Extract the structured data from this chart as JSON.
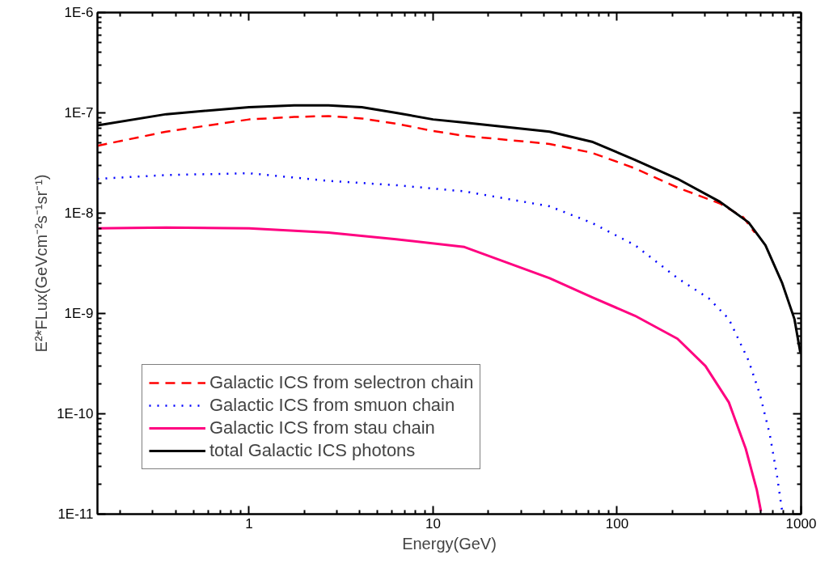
{
  "chart_data": {
    "type": "line",
    "xlabel": "Energy(GeV)",
    "ylabel": "E²*FLux(GeVcm⁻²s⁻¹sr⁻¹)",
    "log": "xy",
    "grid": false,
    "legend": "bottom left",
    "xlim": [
      0.15,
      1000
    ],
    "xticks": [
      1,
      10,
      100,
      1000
    ],
    "ylim": [
      1e-11,
      1e-06
    ],
    "yticks": [
      {
        "value": 1e-11,
        "label": "1E-11"
      },
      {
        "value": 1e-10,
        "label": "1E-10"
      },
      {
        "value": 1e-09,
        "label": "1E-9"
      },
      {
        "value": 1e-08,
        "label": "1E-8"
      },
      {
        "value": 1e-07,
        "label": "1E-7"
      },
      {
        "value": 1e-06,
        "label": "1E-6"
      }
    ],
    "series": [
      {
        "name": "Galactic ICS from selectron chain",
        "color": "#ff0000",
        "line_style": "dashed",
        "x": [
          0.15,
          0.355,
          1,
          1.76,
          2.7,
          4.1,
          6.3,
          10,
          14.8,
          43,
          73,
          125,
          213,
          362,
          485,
          560
        ],
        "values": [
          4.7e-08,
          6.5e-08,
          8.6e-08,
          9.1e-08,
          9.3e-08,
          8.8e-08,
          7.8e-08,
          6.6e-08,
          5.9e-08,
          4.9e-08,
          4e-08,
          2.8e-08,
          1.8e-08,
          1.25e-08,
          9.1e-09,
          6.4e-09
        ]
      },
      {
        "name": "Galactic ICS from smuon chain",
        "color": "#0000ff",
        "line_style": "dotted",
        "x": [
          0.15,
          0.355,
          1,
          2.7,
          6.3,
          14.8,
          43,
          73,
          125,
          213,
          316,
          405,
          518,
          595,
          675,
          740,
          790
        ],
        "values": [
          2.2e-08,
          2.4e-08,
          2.5e-08,
          2.1e-08,
          1.9e-08,
          1.65e-08,
          1.17e-08,
          8e-09,
          4.8e-09,
          2.25e-09,
          1.41e-09,
          8.8e-10,
          3.4e-10,
          1.6e-10,
          6.3e-11,
          2.4e-11,
          1.05e-11
        ]
      },
      {
        "name": "Galactic ICS from stau chain",
        "color": "#ff0080",
        "line_style": "solid",
        "x": [
          0.15,
          0.355,
          1,
          2.7,
          6.3,
          14.8,
          43,
          73,
          125,
          213,
          302,
          405,
          500,
          575,
          605
        ],
        "values": [
          7.05e-09,
          7.2e-09,
          7.05e-09,
          6.4e-09,
          5.5e-09,
          4.6e-09,
          2.25e-09,
          1.45e-09,
          9.5e-10,
          5.6e-10,
          3e-10,
          1.3e-10,
          4.5e-11,
          1.73e-11,
          1.07e-11
        ]
      },
      {
        "name": "total Galactic ICS photons",
        "color": "#000000",
        "line_style": "solid",
        "x": [
          0.15,
          0.355,
          1,
          1.76,
          2.7,
          4.1,
          6.3,
          10,
          14.8,
          43,
          73,
          125,
          213,
          362,
          518,
          640,
          790,
          920,
          990
        ],
        "values": [
          7.5e-08,
          9.7e-08,
          1.14e-07,
          1.19e-07,
          1.19e-07,
          1.14e-07,
          1e-07,
          8.6e-08,
          8e-08,
          6.5e-08,
          5.15e-08,
          3.4e-08,
          2.2e-08,
          1.3e-08,
          8.1e-09,
          4.8e-09,
          2e-09,
          8.8e-10,
          4.1e-10
        ]
      }
    ]
  }
}
